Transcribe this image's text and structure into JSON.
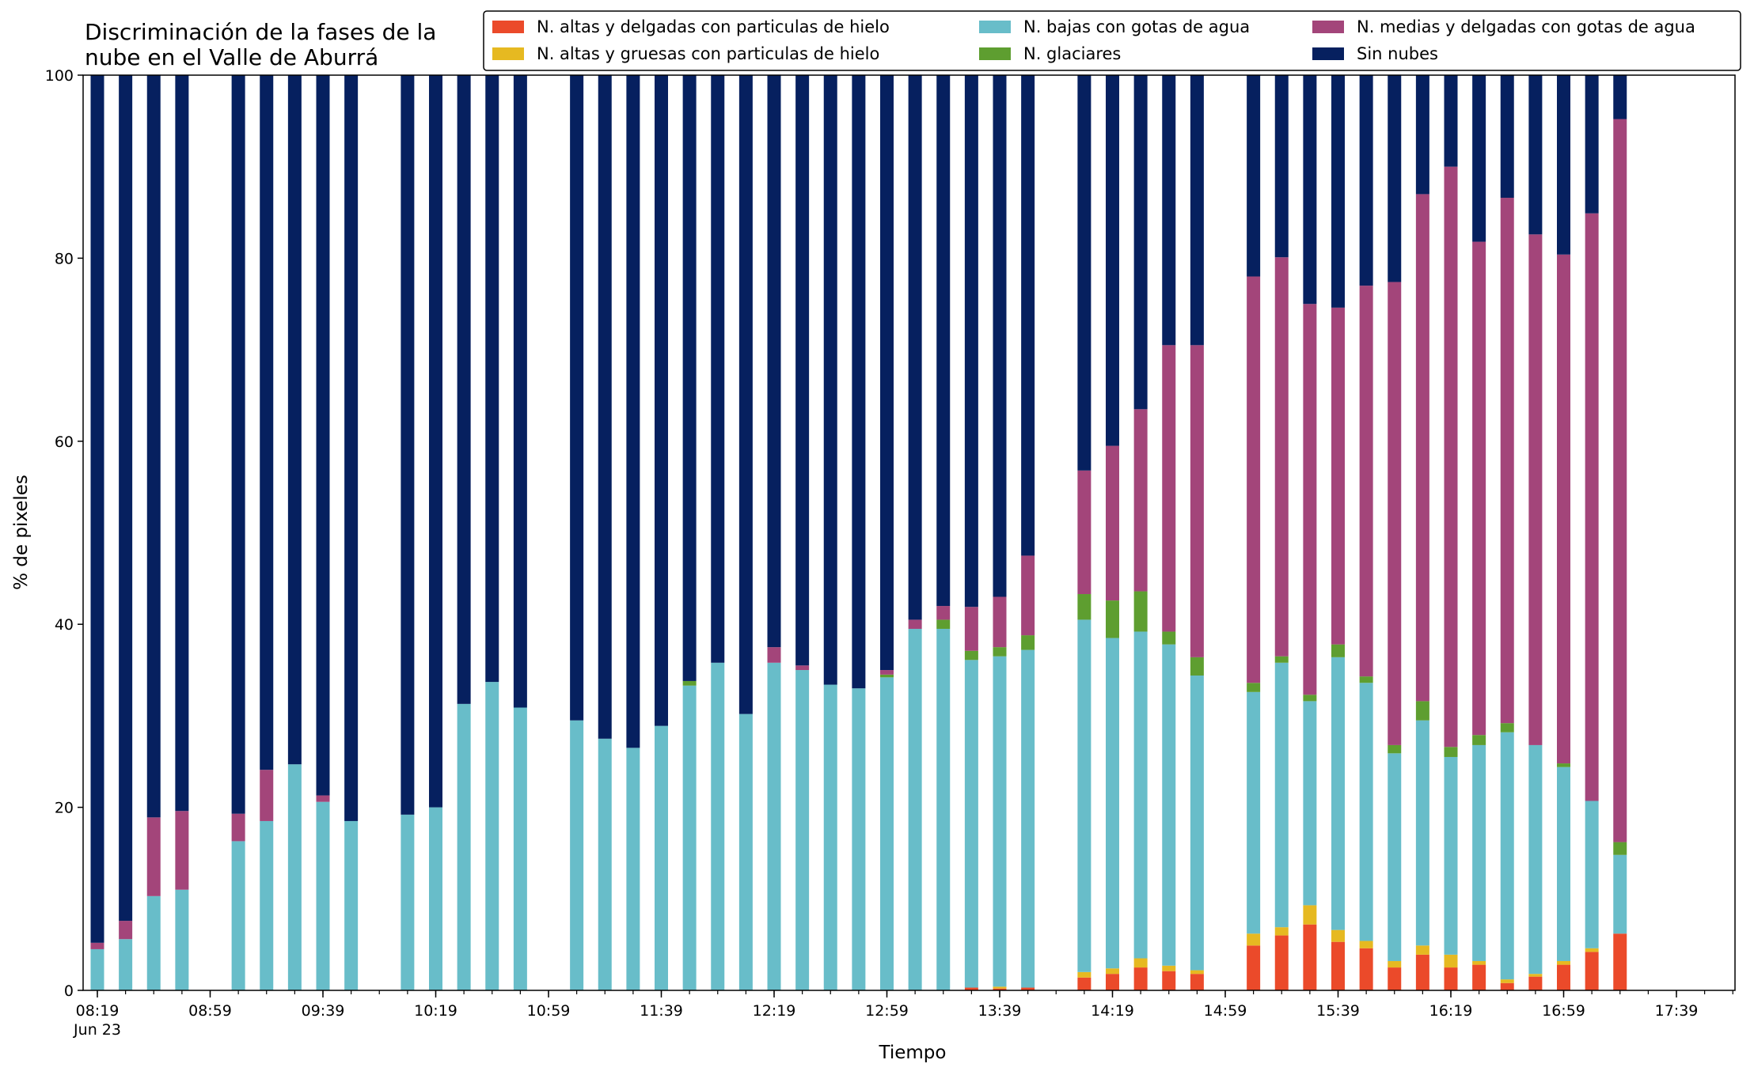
{
  "chart_data": {
    "type": "bar",
    "stacked": true,
    "title": "Discriminación de la fases de la\nnube en el Valle de Aburrá",
    "xlabel": "Tiempo",
    "ylabel": "% de pixeles",
    "ylim": [
      0,
      100
    ],
    "yticks": [
      0,
      20,
      40,
      60,
      80,
      100
    ],
    "xlim_minutes": [
      0,
      600
    ],
    "x_major_ticks": [
      {
        "minute": 0,
        "label": "08:19\nJun 23"
      },
      {
        "minute": 40,
        "label": "08:59"
      },
      {
        "minute": 80,
        "label": "09:39"
      },
      {
        "minute": 120,
        "label": "10:19"
      },
      {
        "minute": 160,
        "label": "10:59"
      },
      {
        "minute": 200,
        "label": "11:39"
      },
      {
        "minute": 240,
        "label": "12:19"
      },
      {
        "minute": 280,
        "label": "12:59"
      },
      {
        "minute": 320,
        "label": "13:39"
      },
      {
        "minute": 360,
        "label": "14:19"
      },
      {
        "minute": 400,
        "label": "14:59"
      },
      {
        "minute": 440,
        "label": "15:39"
      },
      {
        "minute": 480,
        "label": "16:19"
      },
      {
        "minute": 520,
        "label": "16:59"
      },
      {
        "minute": 560,
        "label": "17:39"
      }
    ],
    "x_minor_step_minutes": 10,
    "grid": false,
    "legend_position": "top-right",
    "legend_columns": 3,
    "series": [
      {
        "name": "N. altas y delgadas con particulas de hielo",
        "color": "#eb4a2a"
      },
      {
        "name": "N. altas y gruesas con particulas de hielo",
        "color": "#e6b921"
      },
      {
        "name": "N. bajas con gotas de agua",
        "color": "#68bdc9"
      },
      {
        "name": "N. glaciares",
        "color": "#5e9e30"
      },
      {
        "name": "N. medias y delgadas con gotas de agua",
        "color": "#a3457a"
      },
      {
        "name": "Sin nubes",
        "color": "#06205f"
      }
    ],
    "bars": [
      {
        "minute": 0,
        "values": [
          0,
          0,
          4.5,
          0,
          0.7,
          94.8
        ]
      },
      {
        "minute": 10,
        "values": [
          0,
          0,
          5.6,
          0,
          2,
          92.4
        ]
      },
      {
        "minute": 20,
        "values": [
          0,
          0,
          10.3,
          0,
          8.6,
          81.1
        ]
      },
      {
        "minute": 30,
        "values": [
          0,
          0,
          11,
          0,
          8.6,
          80.4
        ]
      },
      {
        "minute": 50,
        "values": [
          0,
          0,
          16.3,
          0,
          3,
          80.7
        ]
      },
      {
        "minute": 60,
        "values": [
          0,
          0,
          18.5,
          0,
          5.6,
          75.9
        ]
      },
      {
        "minute": 70,
        "values": [
          0,
          0,
          24.7,
          0,
          0,
          75.3
        ]
      },
      {
        "minute": 80,
        "values": [
          0,
          0,
          20.6,
          0,
          0.7,
          78.7
        ]
      },
      {
        "minute": 90,
        "values": [
          0,
          0,
          18.5,
          0,
          0,
          81.5
        ]
      },
      {
        "minute": 110,
        "values": [
          0,
          0,
          19.2,
          0,
          0,
          80.8
        ]
      },
      {
        "minute": 120,
        "values": [
          0,
          0,
          20,
          0,
          0,
          80
        ]
      },
      {
        "minute": 130,
        "values": [
          0,
          0,
          31.3,
          0,
          0,
          68.7
        ]
      },
      {
        "minute": 140,
        "values": [
          0,
          0,
          33.7,
          0,
          0,
          66.3
        ]
      },
      {
        "minute": 150,
        "values": [
          0,
          0,
          30.9,
          0,
          0,
          69.1
        ]
      },
      {
        "minute": 170,
        "values": [
          0,
          0,
          29.5,
          0,
          0,
          70.5
        ]
      },
      {
        "minute": 180,
        "values": [
          0,
          0,
          27.5,
          0,
          0,
          72.5
        ]
      },
      {
        "minute": 190,
        "values": [
          0,
          0,
          26.5,
          0,
          0,
          73.5
        ]
      },
      {
        "minute": 200,
        "values": [
          0,
          0,
          28.9,
          0,
          0,
          71.1
        ]
      },
      {
        "minute": 210,
        "values": [
          0,
          0,
          33.3,
          0.5,
          0,
          66.2
        ]
      },
      {
        "minute": 220,
        "values": [
          0,
          0,
          35.8,
          0,
          0,
          64.2
        ]
      },
      {
        "minute": 230,
        "values": [
          0,
          0,
          30.2,
          0,
          0,
          69.8
        ]
      },
      {
        "minute": 240,
        "values": [
          0,
          0,
          35.8,
          0,
          1.7,
          62.5
        ]
      },
      {
        "minute": 250,
        "values": [
          0,
          0,
          35,
          0,
          0.5,
          64.5
        ]
      },
      {
        "minute": 260,
        "values": [
          0,
          0,
          33.4,
          0,
          0,
          66.6
        ]
      },
      {
        "minute": 270,
        "values": [
          0,
          0,
          33,
          0,
          0,
          67
        ]
      },
      {
        "minute": 280,
        "values": [
          0,
          0,
          34.2,
          0.3,
          0.5,
          65
        ]
      },
      {
        "minute": 290,
        "values": [
          0,
          0,
          39.5,
          0,
          1,
          59.5
        ]
      },
      {
        "minute": 300,
        "values": [
          0,
          0,
          39.5,
          1,
          1.5,
          58
        ]
      },
      {
        "minute": 310,
        "values": [
          0.3,
          0,
          35.8,
          1,
          4.8,
          58.1
        ]
      },
      {
        "minute": 320,
        "values": [
          0.2,
          0.2,
          36.1,
          1,
          5.5,
          57
        ]
      },
      {
        "minute": 330,
        "values": [
          0.3,
          0,
          36.9,
          1.6,
          8.7,
          52.5
        ]
      },
      {
        "minute": 350,
        "values": [
          1.4,
          0.6,
          38.5,
          2.8,
          13.5,
          43.2
        ]
      },
      {
        "minute": 360,
        "values": [
          1.8,
          0.6,
          36.1,
          4.1,
          16.9,
          40.5
        ]
      },
      {
        "minute": 370,
        "values": [
          2.5,
          1,
          35.7,
          4.4,
          19.9,
          36.5
        ]
      },
      {
        "minute": 380,
        "values": [
          2.1,
          0.6,
          35.1,
          1.4,
          31.3,
          29.5
        ]
      },
      {
        "minute": 390,
        "values": [
          1.8,
          0.4,
          32.2,
          2,
          34.1,
          29.5
        ]
      },
      {
        "minute": 410,
        "values": [
          4.9,
          1.3,
          26.4,
          1,
          44.4,
          22
        ]
      },
      {
        "minute": 420,
        "values": [
          6,
          0.9,
          28.9,
          0.7,
          43.6,
          19.9
        ]
      },
      {
        "minute": 430,
        "values": [
          7.2,
          2.1,
          22.3,
          0.7,
          42.7,
          25
        ]
      },
      {
        "minute": 440,
        "values": [
          5.3,
          1.3,
          29.8,
          1.4,
          36.8,
          25.4
        ]
      },
      {
        "minute": 450,
        "values": [
          4.6,
          0.8,
          28.2,
          0.7,
          42.7,
          23
        ]
      },
      {
        "minute": 460,
        "values": [
          2.5,
          0.7,
          22.7,
          0.9,
          50.6,
          22.6
        ]
      },
      {
        "minute": 470,
        "values": [
          3.9,
          1,
          24.6,
          2.1,
          55.4,
          13
        ]
      },
      {
        "minute": 480,
        "values": [
          2.5,
          1.4,
          21.6,
          1.1,
          63.4,
          10
        ]
      },
      {
        "minute": 490,
        "values": [
          2.8,
          0.4,
          23.6,
          1.1,
          53.9,
          18.2
        ]
      },
      {
        "minute": 500,
        "values": [
          0.8,
          0.4,
          27,
          1,
          57.4,
          13.4
        ]
      },
      {
        "minute": 510,
        "values": [
          1.5,
          0.3,
          25,
          0,
          55.8,
          17.4
        ]
      },
      {
        "minute": 520,
        "values": [
          2.8,
          0.4,
          21.2,
          0.4,
          55.6,
          19.6
        ]
      },
      {
        "minute": 530,
        "values": [
          4.2,
          0.4,
          16.1,
          0,
          64.2,
          15.1
        ]
      },
      {
        "minute": 540,
        "values": [
          6.2,
          0,
          8.6,
          1.4,
          79,
          4.8
        ]
      }
    ]
  }
}
